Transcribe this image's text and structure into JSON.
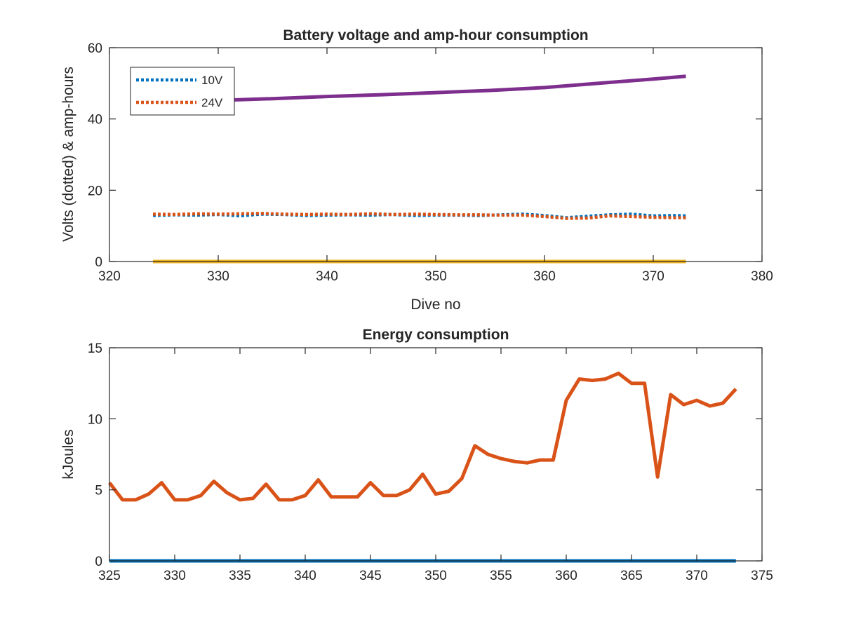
{
  "chart_data": [
    {
      "type": "line",
      "title": "Battery voltage and amp-hour consumption",
      "xlabel": "Dive no",
      "ylabel": "Volts (dotted) & amp-hours",
      "xlim": [
        320,
        380
      ],
      "ylim": [
        0,
        60
      ],
      "xticks": [
        320,
        330,
        340,
        350,
        360,
        370,
        380
      ],
      "yticks": [
        0,
        20,
        40,
        60
      ],
      "grid": false,
      "legend_position": "top-left",
      "series": [
        {
          "name": "10V",
          "style": "dotted",
          "color": "#0072bd",
          "x": [
            324,
            326,
            328,
            330,
            332,
            334,
            336,
            338,
            340,
            342,
            344,
            346,
            348,
            350,
            352,
            354,
            356,
            358,
            360,
            362,
            364,
            366,
            368,
            370,
            372,
            373
          ],
          "y": [
            12.9,
            13.1,
            13.0,
            13.2,
            12.8,
            13.3,
            13.2,
            12.9,
            13.0,
            13.1,
            13.0,
            13.2,
            12.9,
            13.0,
            13.0,
            12.9,
            13.1,
            13.3,
            12.9,
            12.3,
            12.7,
            13.1,
            13.3,
            12.8,
            12.9,
            12.8
          ]
        },
        {
          "name": "24V",
          "style": "dotted",
          "color": "#d95319",
          "x": [
            324,
            326,
            328,
            330,
            332,
            334,
            336,
            338,
            340,
            342,
            344,
            346,
            348,
            350,
            352,
            354,
            356,
            358,
            360,
            362,
            364,
            366,
            368,
            370,
            372,
            373
          ],
          "y": [
            13.3,
            13.2,
            13.4,
            13.3,
            13.4,
            13.5,
            13.3,
            13.2,
            13.3,
            13.2,
            13.4,
            13.2,
            13.3,
            13.2,
            13.1,
            13.1,
            13.0,
            13.0,
            12.6,
            12.1,
            12.2,
            12.8,
            12.6,
            12.4,
            12.3,
            12.3
          ]
        },
        {
          "name": "",
          "style": "solid",
          "color": "#edb120",
          "x": [
            324,
            373
          ],
          "y": [
            0,
            0
          ]
        },
        {
          "name": "",
          "style": "solid",
          "color": "#7e2f8e",
          "x": [
            330,
            335,
            340,
            345,
            350,
            355,
            360,
            365,
            370,
            373
          ],
          "y": [
            45.2,
            45.7,
            46.3,
            46.8,
            47.4,
            48.0,
            48.8,
            50.0,
            51.2,
            52.0
          ]
        }
      ]
    },
    {
      "type": "line",
      "title": "Energy consumption",
      "xlabel": "",
      "ylabel": "kJoules",
      "xlim": [
        325,
        375
      ],
      "ylim": [
        0,
        15
      ],
      "xticks": [
        325,
        330,
        335,
        340,
        345,
        350,
        355,
        360,
        365,
        370,
        375
      ],
      "yticks": [
        0,
        5,
        10,
        15
      ],
      "grid": false,
      "series": [
        {
          "name": "",
          "style": "solid",
          "color": "#0072bd",
          "x": [
            325,
            373
          ],
          "y": [
            0,
            0
          ]
        },
        {
          "name": "",
          "style": "solid",
          "color": "#d95319",
          "x": [
            325,
            326,
            327,
            328,
            329,
            330,
            331,
            332,
            333,
            334,
            335,
            336,
            337,
            338,
            339,
            340,
            341,
            342,
            343,
            344,
            345,
            346,
            347,
            348,
            349,
            350,
            351,
            352,
            353,
            354,
            355,
            356,
            357,
            358,
            359,
            360,
            361,
            362,
            363,
            364,
            365,
            366,
            367,
            368,
            369,
            370,
            371,
            372,
            373
          ],
          "y": [
            5.5,
            4.3,
            4.3,
            4.7,
            5.5,
            4.3,
            4.3,
            4.6,
            5.6,
            4.8,
            4.3,
            4.4,
            5.4,
            4.3,
            4.3,
            4.6,
            5.7,
            4.5,
            4.5,
            4.5,
            5.5,
            4.6,
            4.6,
            5.0,
            6.1,
            4.7,
            4.9,
            5.8,
            8.1,
            7.5,
            7.2,
            7.0,
            6.9,
            7.1,
            7.1,
            11.3,
            12.8,
            12.7,
            12.8,
            13.2,
            12.5,
            12.5,
            5.9,
            11.7,
            11.0,
            11.3,
            10.9,
            11.1,
            12.1
          ]
        }
      ]
    }
  ]
}
